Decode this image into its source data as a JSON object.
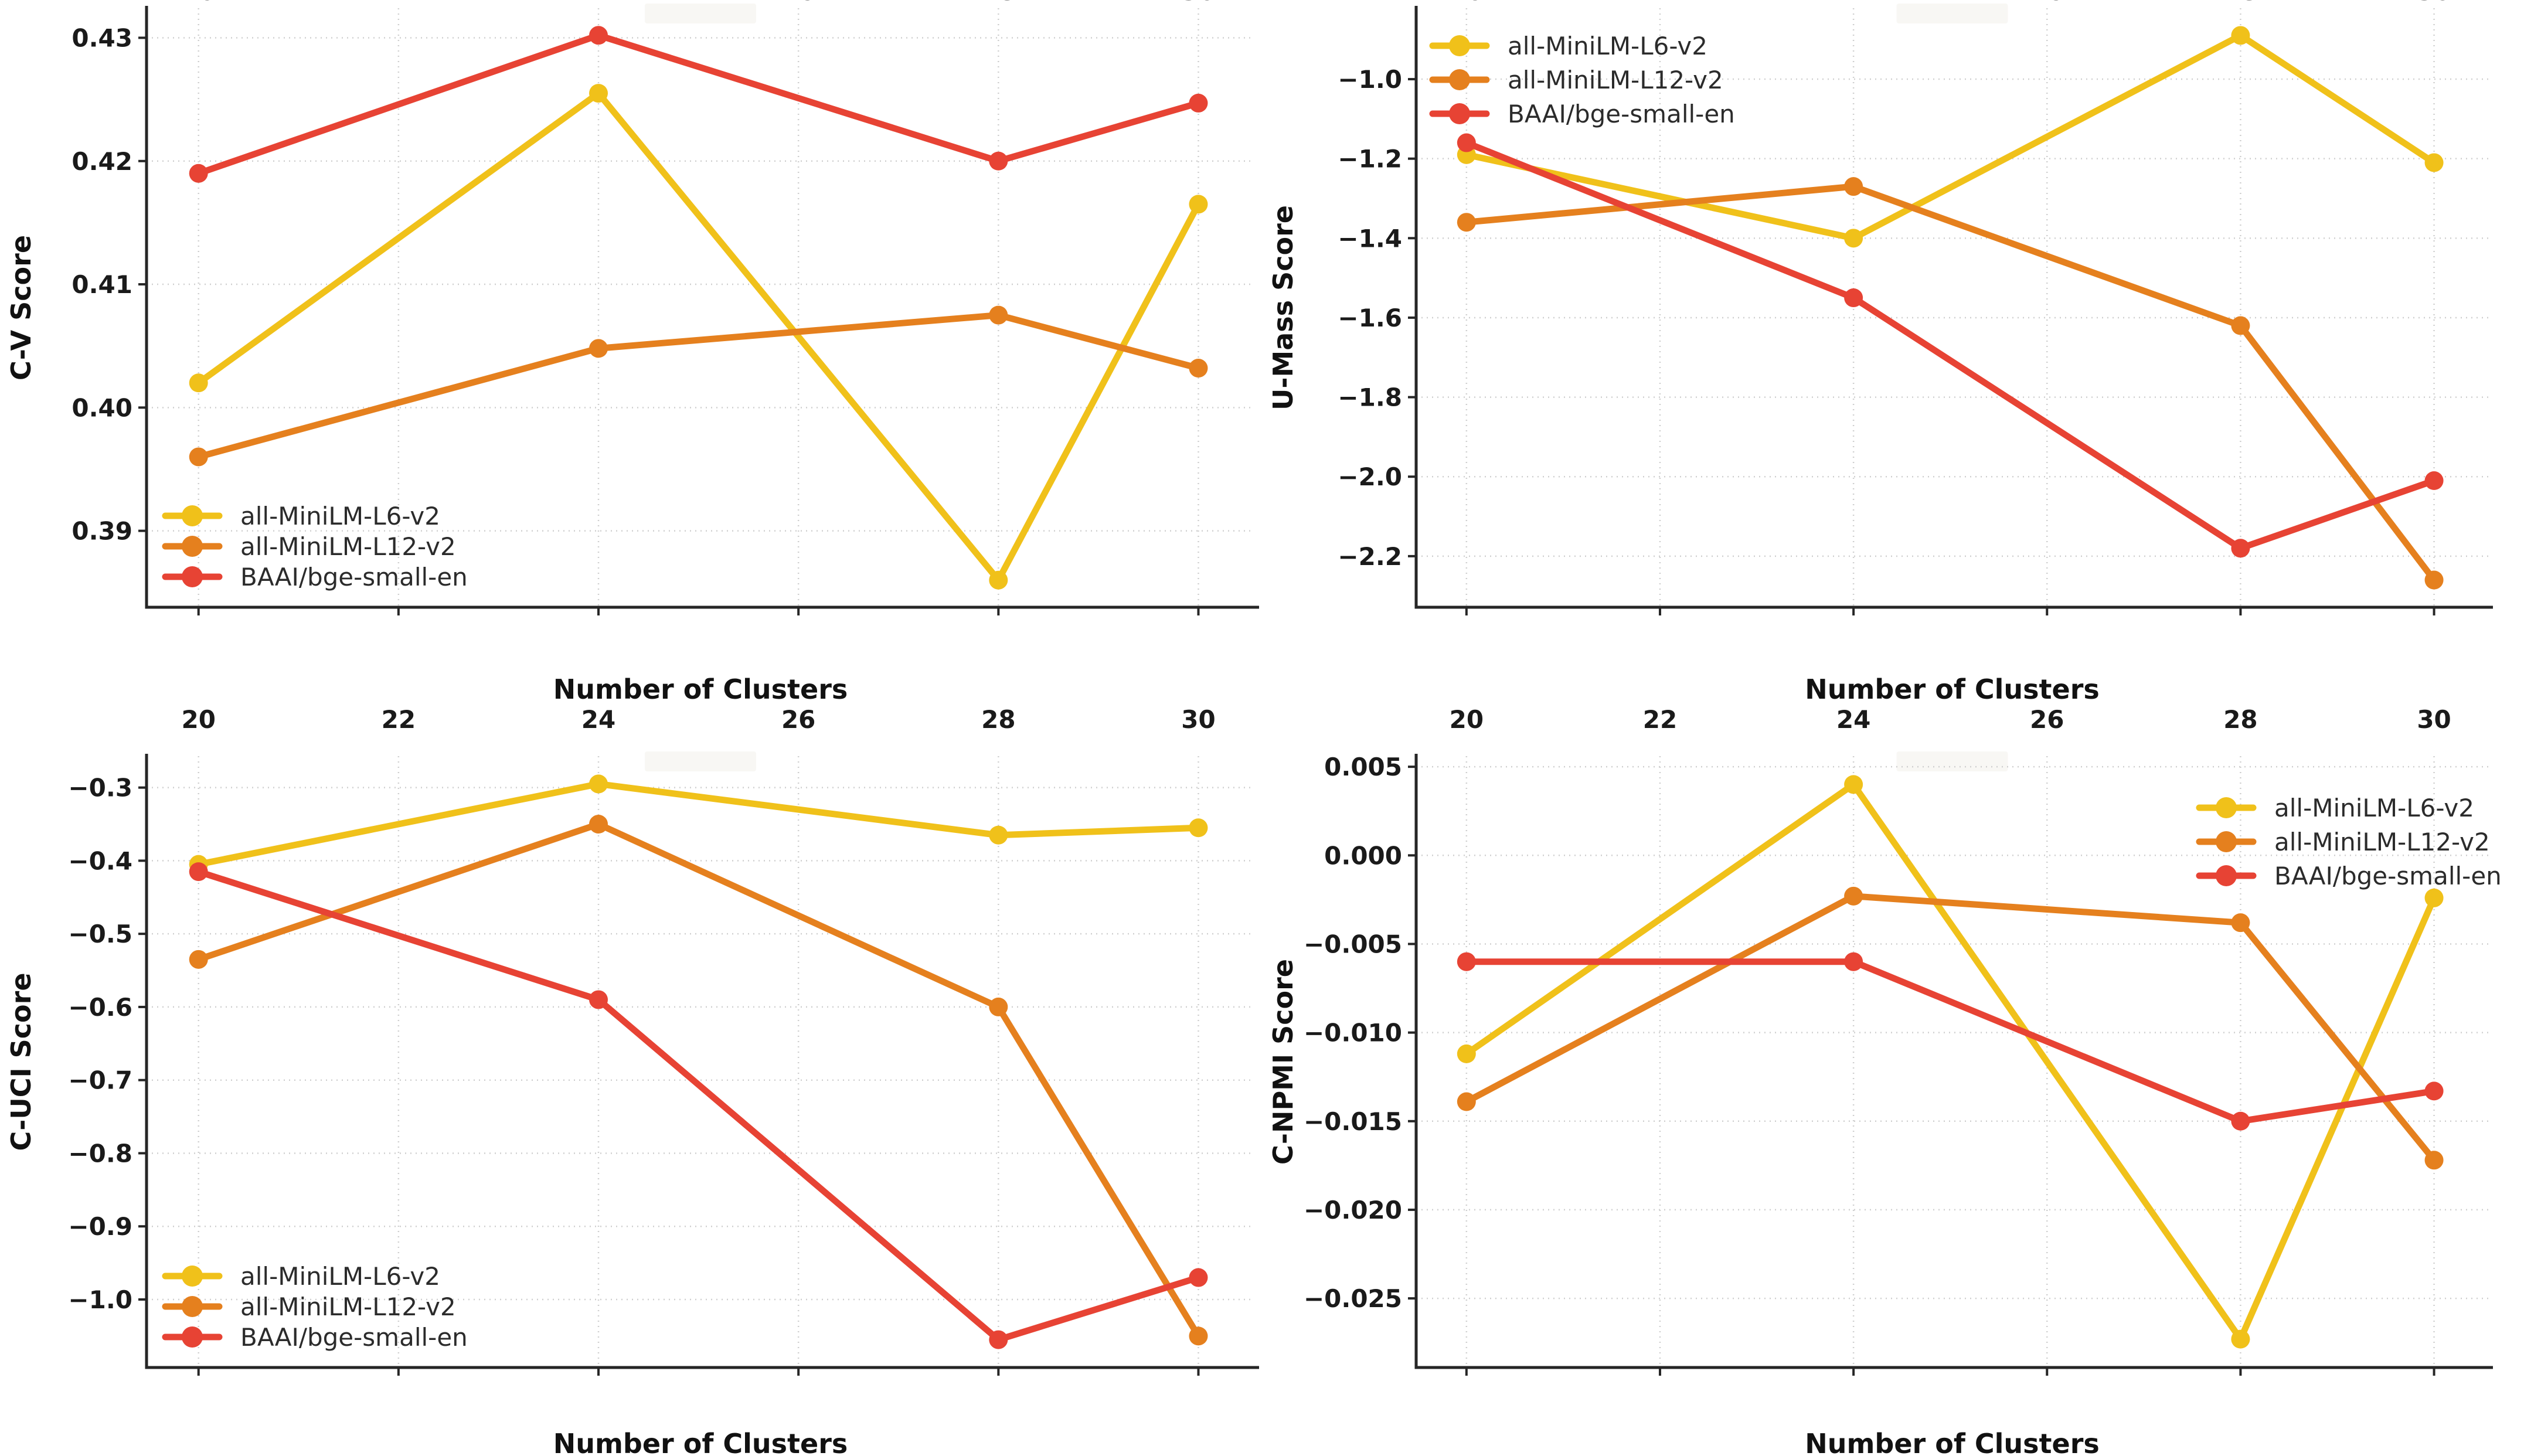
{
  "figure": {
    "background": "#ffffff",
    "xlabel": "Number of Clusters",
    "x_tick_values": [
      20,
      22,
      24,
      26,
      28,
      30
    ],
    "x_tick_labels": [
      "20",
      "22",
      "24",
      "26",
      "28",
      "30"
    ],
    "series_names": [
      "all-MiniLM-L6-v2",
      "all-MiniLM-L12-v2",
      "BAAI/bge-small-en"
    ],
    "series_colors": [
      "#F0C11A",
      "#E5801E",
      "#E74334"
    ],
    "grid_color": "#cfcfcf",
    "spine_color": "#262626"
  },
  "chart_data": [
    {
      "type": "line",
      "position": "top-left",
      "title": "",
      "ylabel": "C-V Score",
      "xlabel": "Number of Clusters",
      "grid": true,
      "legend_position": "lower-left",
      "x": [
        20,
        24,
        28,
        30
      ],
      "series": [
        {
          "name": "all-MiniLM-L6-v2",
          "color": "#F0C11A",
          "values": [
            0.402,
            0.4255,
            0.386,
            0.4165
          ]
        },
        {
          "name": "all-MiniLM-L12-v2",
          "color": "#E5801E",
          "values": [
            0.396,
            0.4048,
            0.4075,
            0.4032
          ]
        },
        {
          "name": "BAAI/bge-small-en",
          "color": "#E74334",
          "values": [
            0.419,
            0.4302,
            0.42,
            0.4247
          ]
        }
      ],
      "xlim": [
        19.48,
        30.56
      ],
      "ylim": [
        0.3838,
        0.4324
      ],
      "ytick_values": [
        0.39,
        0.4,
        0.41,
        0.42,
        0.43
      ],
      "ytick_labels": [
        "0.39",
        "0.40",
        "0.41",
        "0.42",
        "0.43"
      ]
    },
    {
      "type": "line",
      "position": "top-right",
      "title": "",
      "ylabel": "U-Mass Score",
      "xlabel": "Number of Clusters",
      "grid": true,
      "legend_position": "upper-left",
      "x": [
        20,
        24,
        28,
        30
      ],
      "series": [
        {
          "name": "all-MiniLM-L6-v2",
          "color": "#F0C11A",
          "values": [
            -1.19,
            -1.4,
            -0.89,
            -1.21
          ]
        },
        {
          "name": "all-MiniLM-L12-v2",
          "color": "#E5801E",
          "values": [
            -1.36,
            -1.27,
            -1.62,
            -2.26
          ]
        },
        {
          "name": "BAAI/bge-small-en",
          "color": "#E74334",
          "values": [
            -1.16,
            -1.55,
            -2.18,
            -2.01
          ]
        }
      ],
      "xlim": [
        19.48,
        30.56
      ],
      "ylim": [
        -2.3285,
        -0.8215
      ],
      "ytick_values": [
        -1.0,
        -1.2,
        -1.4,
        -1.6,
        -1.8,
        -2.0,
        -2.2
      ],
      "ytick_labels": [
        "−1.0",
        "−1.2",
        "−1.4",
        "−1.6",
        "−1.8",
        "−2.0",
        "−2.2"
      ]
    },
    {
      "type": "line",
      "position": "bottom-left",
      "title": "",
      "ylabel": "C-UCI Score",
      "xlabel": "Number of Clusters",
      "grid": true,
      "legend_position": "lower-left",
      "x": [
        20,
        24,
        28,
        30
      ],
      "series": [
        {
          "name": "all-MiniLM-L6-v2",
          "color": "#F0C11A",
          "values": [
            -0.405,
            -0.295,
            -0.365,
            -0.355
          ]
        },
        {
          "name": "all-MiniLM-L12-v2",
          "color": "#E5801E",
          "values": [
            -0.535,
            -0.35,
            -0.6,
            -1.05
          ]
        },
        {
          "name": "BAAI/bge-small-en",
          "color": "#E74334",
          "values": [
            -0.415,
            -0.59,
            -1.055,
            -0.97
          ]
        }
      ],
      "xlim": [
        19.48,
        30.56
      ],
      "ylim": [
        -1.093,
        -0.257
      ],
      "ytick_values": [
        -0.3,
        -0.4,
        -0.5,
        -0.6,
        -0.7,
        -0.8,
        -0.9,
        -1.0
      ],
      "ytick_labels": [
        "−0.3",
        "−0.4",
        "−0.5",
        "−0.6",
        "−0.7",
        "−0.8",
        "−0.9",
        "−1.0"
      ]
    },
    {
      "type": "line",
      "position": "bottom-right",
      "title": "",
      "ylabel": "C-NPMI Score",
      "xlabel": "Number of Clusters",
      "grid": true,
      "legend_position": "upper-right",
      "x": [
        20,
        24,
        28,
        30
      ],
      "series": [
        {
          "name": "all-MiniLM-L6-v2",
          "color": "#F0C11A",
          "values": [
            -0.0112,
            0.004,
            -0.0273,
            -0.0024
          ]
        },
        {
          "name": "all-MiniLM-L12-v2",
          "color": "#E5801E",
          "values": [
            -0.0139,
            -0.0023,
            -0.0038,
            -0.0172
          ]
        },
        {
          "name": "BAAI/bge-small-en",
          "color": "#E74334",
          "values": [
            -0.006,
            -0.006,
            -0.015,
            -0.0133
          ]
        }
      ],
      "xlim": [
        19.48,
        30.56
      ],
      "ylim": [
        -0.0289,
        0.0056
      ],
      "ytick_values": [
        0.005,
        0.0,
        -0.005,
        -0.01,
        -0.015,
        -0.02,
        -0.025
      ],
      "ytick_labels": [
        "0.005",
        "0.000",
        "−0.005",
        "−0.010",
        "−0.015",
        "−0.020",
        "−0.025"
      ]
    }
  ]
}
